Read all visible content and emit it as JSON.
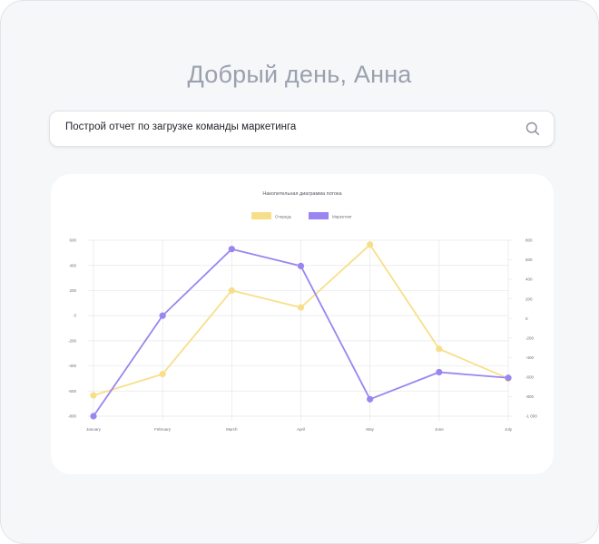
{
  "greeting": "Добрый день, Анна",
  "search": {
    "value": "Построй отчет по загрузке команды маркетинга",
    "icon": "search-icon"
  },
  "chart_data": {
    "type": "line",
    "title": "Накопительная диаграмма потока",
    "categories": [
      "January",
      "February",
      "March",
      "April",
      "May",
      "June",
      "July"
    ],
    "series": [
      {
        "name": "Очередь",
        "color": "#f7df8a",
        "axis": "left",
        "values": [
          -635,
          -465,
          200,
          65,
          565,
          -265,
          -500
        ]
      },
      {
        "name": "Маркетинг",
        "color": "#9b85f0",
        "axis": "left",
        "values": [
          -800,
          0,
          530,
          395,
          -665,
          -450,
          -495
        ]
      }
    ],
    "y_left": {
      "ylim": [
        -800,
        600
      ],
      "ticks": [
        "600",
        "400",
        "200",
        "0",
        "-200",
        "-400",
        "-600",
        "-800"
      ]
    },
    "y_right": {
      "ylim": [
        -1000,
        800
      ],
      "ticks": [
        "800",
        "600",
        "400",
        "200",
        "0",
        "-200",
        "-400",
        "-600",
        "-800",
        "-1 000"
      ]
    },
    "grid": true,
    "legend_position": "top"
  }
}
